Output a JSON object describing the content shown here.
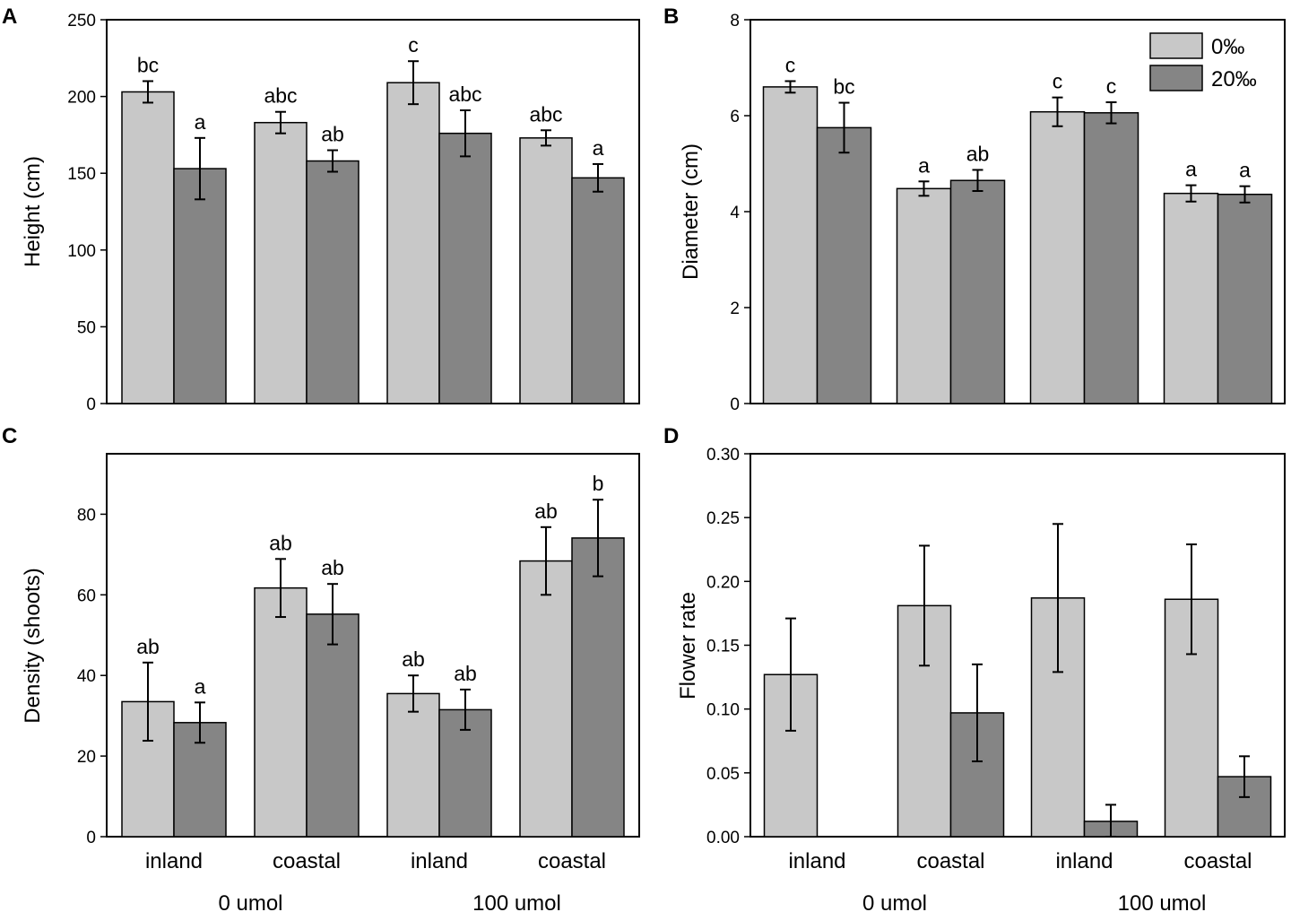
{
  "figure_legend": {
    "entries": [
      "0‰",
      "20‰"
    ],
    "colors": [
      "#c8c8c8",
      "#858585"
    ]
  },
  "chart_data": [
    {
      "panel": "A",
      "type": "bar",
      "ylabel": "Height (cm)",
      "ylim": [
        0,
        250
      ],
      "yticks": [
        0,
        50,
        100,
        150,
        200,
        250
      ],
      "categories": [
        "inland",
        "coastal",
        "inland",
        "coastal"
      ],
      "groups": [],
      "series": [
        {
          "name": "0‰",
          "values": [
            203,
            183,
            209,
            173
          ],
          "errors": [
            7,
            7,
            14,
            5
          ],
          "labels": [
            "bc",
            "abc",
            "c",
            "abc"
          ]
        },
        {
          "name": "20‰",
          "values": [
            153,
            158,
            176,
            147
          ],
          "errors": [
            20,
            7,
            15,
            9
          ],
          "labels": [
            "a",
            "ab",
            "abc",
            "a"
          ]
        }
      ]
    },
    {
      "panel": "B",
      "type": "bar",
      "ylabel": "Diameter (cm)",
      "ylim": [
        0,
        8
      ],
      "yticks": [
        0,
        2,
        4,
        6,
        8
      ],
      "categories": [
        "inland",
        "coastal",
        "inland",
        "coastal"
      ],
      "groups": [],
      "series": [
        {
          "name": "0‰",
          "values": [
            6.6,
            4.48,
            6.08,
            4.38
          ],
          "errors": [
            0.12,
            0.15,
            0.3,
            0.17
          ],
          "labels": [
            "c",
            "a",
            "c",
            "a"
          ]
        },
        {
          "name": "20‰",
          "values": [
            5.75,
            4.65,
            6.06,
            4.36
          ],
          "errors": [
            0.52,
            0.22,
            0.22,
            0.17
          ],
          "labels": [
            "bc",
            "ab",
            "c",
            "a"
          ]
        }
      ]
    },
    {
      "panel": "C",
      "type": "bar",
      "ylabel": "Density (shoots)",
      "ylim": [
        0,
        95
      ],
      "yticks": [
        0,
        20,
        40,
        60,
        80
      ],
      "categories": [
        "inland",
        "coastal",
        "inland",
        "coastal"
      ],
      "groups": [
        "0 umol",
        "100 umol"
      ],
      "series": [
        {
          "name": "0‰",
          "values": [
            33.5,
            61.7,
            35.5,
            68.4
          ],
          "errors": [
            9.7,
            7.2,
            4.5,
            8.4
          ],
          "labels": [
            "ab",
            "ab",
            "ab",
            "ab"
          ]
        },
        {
          "name": "20‰",
          "values": [
            28.3,
            55.2,
            31.5,
            74.1
          ],
          "errors": [
            5.0,
            7.5,
            5.0,
            9.5
          ],
          "labels": [
            "a",
            "ab",
            "ab",
            "b"
          ]
        }
      ]
    },
    {
      "panel": "D",
      "type": "bar",
      "ylabel": "Flower rate",
      "ylim": [
        0,
        0.3
      ],
      "yticks": [
        "0.00",
        "0.05",
        "0.10",
        "0.15",
        "0.20",
        "0.25",
        "0.30"
      ],
      "categories": [
        "inland",
        "coastal",
        "inland",
        "coastal"
      ],
      "groups": [
        "0 umol",
        "100 umol"
      ],
      "series": [
        {
          "name": "0‰",
          "values": [
            0.127,
            0.181,
            0.187,
            0.186
          ],
          "errors": [
            0.044,
            0.047,
            0.058,
            0.043
          ],
          "labels": []
        },
        {
          "name": "20‰",
          "values": [
            0,
            0.097,
            0.012,
            0.047
          ],
          "errors": [
            0,
            0.038,
            0.013,
            0.016
          ],
          "labels": []
        }
      ]
    }
  ]
}
